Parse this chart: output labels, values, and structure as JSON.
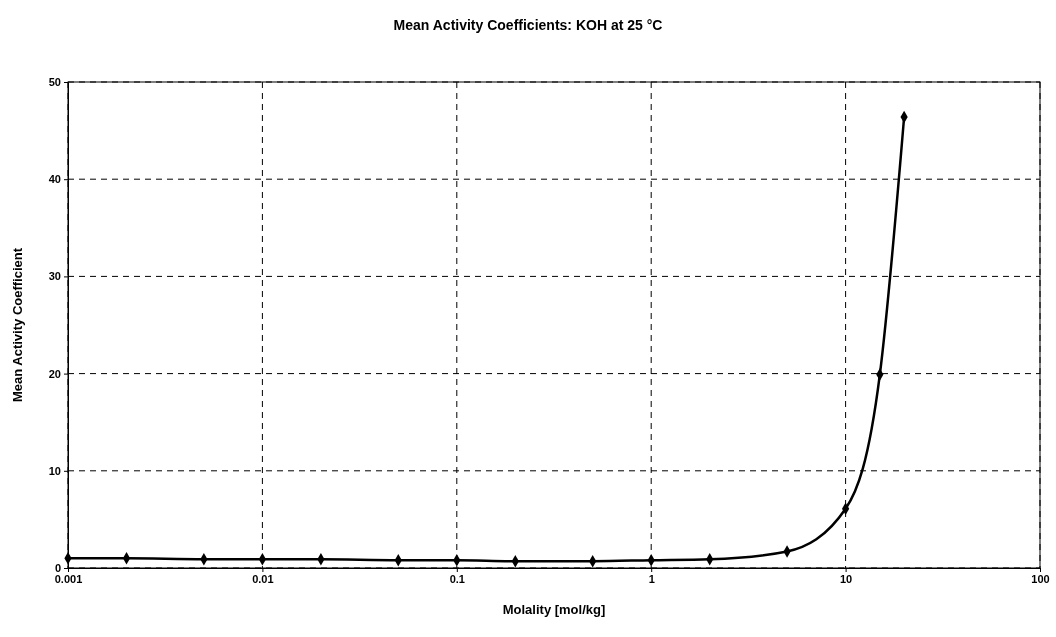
{
  "chart_data": {
    "type": "line",
    "title": "Mean Activity Coefficients: KOH at 25 °C",
    "xlabel": "Molality [mol/kg]",
    "ylabel": "Mean Activity Coefficient",
    "x": [
      0.001,
      0.002,
      0.005,
      0.01,
      0.02,
      0.05,
      0.1,
      0.2,
      0.5,
      1,
      2,
      5,
      10,
      15,
      20
    ],
    "series": [
      {
        "color": "#000000",
        "values": [
          1.0,
          1.0,
          0.9,
          0.9,
          0.9,
          0.8,
          0.8,
          0.7,
          0.7,
          0.8,
          0.9,
          1.7,
          6.1,
          19.9,
          46.4
        ]
      }
    ],
    "log": "x",
    "xlim": [
      0.001,
      100
    ],
    "xticks": [
      0.001,
      0.01,
      0.1,
      1,
      10,
      100
    ],
    "ylim": [
      0,
      50
    ],
    "yticks": [
      0,
      10,
      20,
      30,
      40,
      50
    ],
    "grid": true,
    "marker": "diamond",
    "line_style": "solid"
  }
}
